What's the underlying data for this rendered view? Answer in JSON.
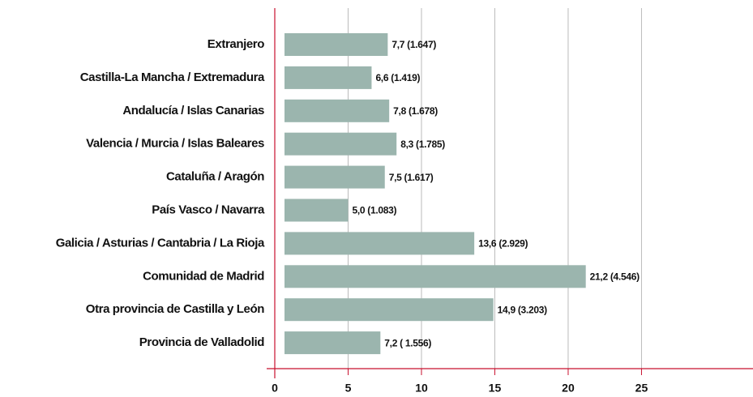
{
  "chart_data": {
    "type": "bar",
    "orientation": "horizontal",
    "categories": [
      "Extranjero",
      "Castilla-La Mancha / Extremadura",
      "Andalucía / Islas Canarias",
      "Valencia / Murcia / Islas Baleares",
      "Cataluña / Aragón",
      "País Vasco / Navarra",
      "Galicia / Asturias / Cantabria / La Rioja",
      "Comunidad de Madrid",
      "Otra provincia de Castilla y León",
      "Provincia de Valladolid"
    ],
    "values": [
      7.7,
      6.6,
      7.8,
      8.3,
      7.5,
      5.0,
      13.6,
      21.2,
      14.9,
      7.2
    ],
    "value_labels": [
      "7,7 (1.647)",
      "6,6 (1.419)",
      "7,8 (1.678)",
      "8,3 (1.785)",
      "7,5 (1.617)",
      "5,0 (1.083)",
      "13,6 (2.929)",
      "21,2 (4.546)",
      "14,9 (3.203)",
      "7,2 ( 1.556)"
    ],
    "color": "#9bb5ae",
    "axis_color": "#c8102e",
    "grid_color": "#bbbbbb",
    "xlim": [
      0,
      32.6
    ],
    "xticks": [
      0,
      5,
      10,
      15,
      20,
      25
    ],
    "grid": true
  }
}
